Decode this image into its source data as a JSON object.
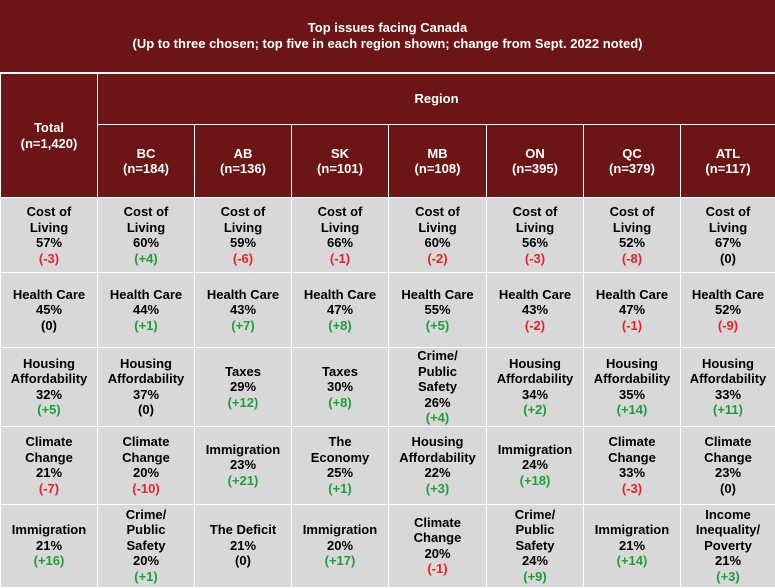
{
  "title_line1": "Top issues facing Canada",
  "title_line2": "(Up to three chosen; top five in each region shown; change from Sept. 2022 noted)",
  "region_header": "Region",
  "columns": [
    {
      "key": "total",
      "name": "Total",
      "n": "(n=1,420)"
    },
    {
      "key": "bc",
      "name": "BC",
      "n": "(n=184)"
    },
    {
      "key": "ab",
      "name": "AB",
      "n": "(n=136)"
    },
    {
      "key": "sk",
      "name": "SK",
      "n": "(n=101)"
    },
    {
      "key": "mb",
      "name": "MB",
      "n": "(n=108)"
    },
    {
      "key": "on",
      "name": "ON",
      "n": "(n=395)"
    },
    {
      "key": "qc",
      "name": "QC",
      "n": "(n=379)"
    },
    {
      "key": "atl",
      "name": "ATL",
      "n": "(n=117)"
    }
  ],
  "colors": {
    "header_bg": "#6b1516",
    "cell_bg": "#d8d8d8",
    "positive": "#1e9e3a",
    "negative": "#e8212a"
  },
  "rows": [
    [
      {
        "label": [
          "Cost of",
          "Living"
        ],
        "pct": "57%",
        "change": "(-3)"
      },
      {
        "label": [
          "Cost of",
          "Living"
        ],
        "pct": "60%",
        "change": "(+4)"
      },
      {
        "label": [
          "Cost of",
          "Living"
        ],
        "pct": "59%",
        "change": "(-6)"
      },
      {
        "label": [
          "Cost of",
          "Living"
        ],
        "pct": "66%",
        "change": "(-1)"
      },
      {
        "label": [
          "Cost of",
          "Living"
        ],
        "pct": "60%",
        "change": "(-2)"
      },
      {
        "label": [
          "Cost of",
          "Living"
        ],
        "pct": "56%",
        "change": "(-3)"
      },
      {
        "label": [
          "Cost of",
          "Living"
        ],
        "pct": "52%",
        "change": "(-8)"
      },
      {
        "label": [
          "Cost of",
          "Living"
        ],
        "pct": "67%",
        "change": "(0)"
      }
    ],
    [
      {
        "label": [
          "Health Care"
        ],
        "pct": "45%",
        "change": "(0)"
      },
      {
        "label": [
          "Health Care"
        ],
        "pct": "44%",
        "change": "(+1)"
      },
      {
        "label": [
          "Health Care"
        ],
        "pct": "43%",
        "change": "(+7)"
      },
      {
        "label": [
          "Health Care"
        ],
        "pct": "47%",
        "change": "(+8)"
      },
      {
        "label": [
          "Health Care"
        ],
        "pct": "55%",
        "change": "(+5)"
      },
      {
        "label": [
          "Health Care"
        ],
        "pct": "43%",
        "change": "(-2)"
      },
      {
        "label": [
          "Health Care"
        ],
        "pct": "47%",
        "change": "(-1)"
      },
      {
        "label": [
          "Health Care"
        ],
        "pct": "52%",
        "change": "(-9)"
      }
    ],
    [
      {
        "label": [
          "Housing",
          "Affordability"
        ],
        "pct": "32%",
        "change": "(+5)"
      },
      {
        "label": [
          "Housing",
          "Affordability"
        ],
        "pct": "37%",
        "change": "(0)"
      },
      {
        "label": [
          "Taxes"
        ],
        "pct": "29%",
        "change": "(+12)"
      },
      {
        "label": [
          "Taxes"
        ],
        "pct": "30%",
        "change": "(+8)"
      },
      {
        "label": [
          "Crime/",
          "Public",
          "Safety"
        ],
        "pct": "26%",
        "change": "(+4)"
      },
      {
        "label": [
          "Housing",
          "Affordability"
        ],
        "pct": "34%",
        "change": "(+2)"
      },
      {
        "label": [
          "Housing",
          "Affordability"
        ],
        "pct": "35%",
        "change": "(+14)"
      },
      {
        "label": [
          "Housing",
          "Affordability"
        ],
        "pct": "33%",
        "change": "(+11)"
      }
    ],
    [
      {
        "label": [
          "Climate",
          "Change"
        ],
        "pct": "21%",
        "change": "(-7)"
      },
      {
        "label": [
          "Climate",
          "Change"
        ],
        "pct": "20%",
        "change": "(-10)"
      },
      {
        "label": [
          "Immigration"
        ],
        "pct": "23%",
        "change": "(+21)"
      },
      {
        "label": [
          "The",
          "Economy"
        ],
        "pct": "25%",
        "change": "(+1)"
      },
      {
        "label": [
          "Housing",
          "Affordability"
        ],
        "pct": "22%",
        "change": "(+3)"
      },
      {
        "label": [
          "Immigration"
        ],
        "pct": "24%",
        "change": "(+18)"
      },
      {
        "label": [
          "Climate",
          "Change"
        ],
        "pct": "33%",
        "change": "(-3)"
      },
      {
        "label": [
          "Climate",
          "Change"
        ],
        "pct": "23%",
        "change": "(0)"
      }
    ],
    [
      {
        "label": [
          "Immigration"
        ],
        "pct": "21%",
        "change": "(+16)"
      },
      {
        "label": [
          "Crime/",
          "Public",
          "Safety"
        ],
        "pct": "20%",
        "change": "(+1)"
      },
      {
        "label": [
          "The Deficit"
        ],
        "pct": "21%",
        "change": "(0)"
      },
      {
        "label": [
          "Immigration"
        ],
        "pct": "20%",
        "change": "(+17)"
      },
      {
        "label": [
          "Climate",
          "Change"
        ],
        "pct": "20%",
        "change": "(-1)"
      },
      {
        "label": [
          "Crime/",
          "Public",
          "Safety"
        ],
        "pct": "24%",
        "change": "(+9)"
      },
      {
        "label": [
          "Immigration"
        ],
        "pct": "21%",
        "change": "(+14)"
      },
      {
        "label": [
          "Income",
          "Inequality/",
          "Poverty"
        ],
        "pct": "21%",
        "change": "(+3)"
      }
    ]
  ]
}
